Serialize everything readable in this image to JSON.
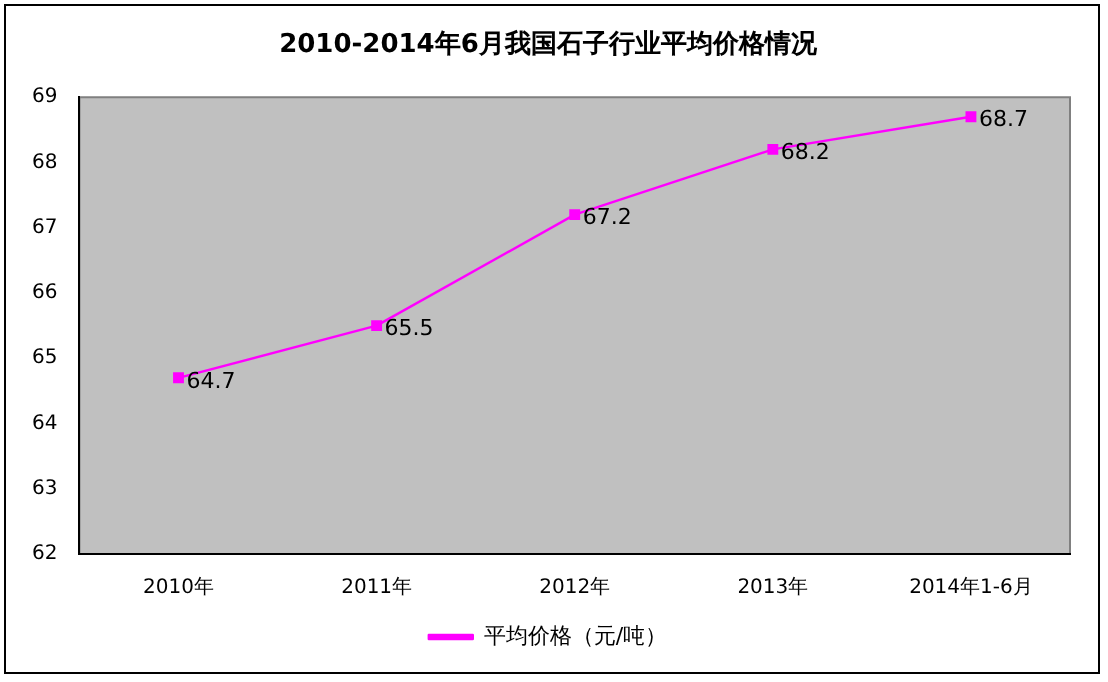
{
  "chart_data": {
    "type": "line",
    "title": "2010-2014年6月我国石子行业平均价格情况",
    "categories": [
      "2010年",
      "2011年",
      "2012年",
      "2013年",
      "2014年1-6月"
    ],
    "series": [
      {
        "name": "平均价格（元/吨）",
        "color": "#ff00ff",
        "values": [
          64.7,
          65.5,
          67.2,
          68.2,
          68.7
        ]
      }
    ],
    "ylim": [
      62,
      69
    ],
    "yticks": [
      62,
      63,
      64,
      65,
      66,
      67,
      68,
      69
    ],
    "grid": false,
    "legend": "bottom",
    "marker": "square",
    "line_style": "solid",
    "data_labels": true
  }
}
